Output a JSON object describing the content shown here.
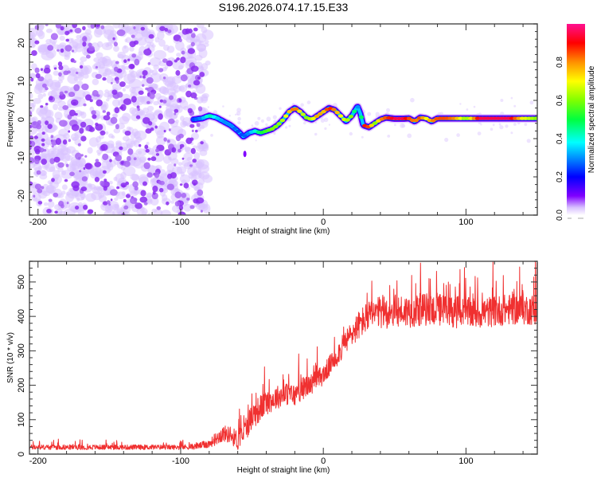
{
  "title": "S196.2026.074.17.15.E33",
  "chart_data": [
    {
      "type": "heatmap",
      "panel": "top",
      "xlabel": "Height of straight line (km)",
      "ylabel": "Frequency (Hz)",
      "xlim": [
        -206,
        150
      ],
      "ylim": [
        -25,
        25
      ],
      "xticks": [
        -200,
        -100,
        0,
        100
      ],
      "xtick_labels": [
        "-200",
        "-100",
        "0",
        "100"
      ],
      "yticks": [
        -20,
        -10,
        0,
        10,
        20
      ],
      "ytick_labels": [
        "-20",
        "-10",
        "0",
        "10",
        "20"
      ],
      "noise_region_x": [
        -206,
        -85
      ],
      "ridge": {
        "x": [
          -91,
          -85,
          -80,
          -75,
          -70,
          -65,
          -60,
          -56,
          -52,
          -48,
          -44,
          -40,
          -36,
          -32,
          -28,
          -24,
          -20,
          -16,
          -12,
          -8,
          -4,
          0,
          4,
          8,
          12,
          16,
          20,
          24,
          26,
          28,
          32,
          36,
          40,
          44,
          50,
          56,
          60,
          64,
          68,
          72,
          76,
          80,
          86,
          92,
          100,
          110,
          120,
          130,
          140,
          150
        ],
        "y": [
          0,
          0.3,
          1,
          0.5,
          -0.5,
          -1.5,
          -3,
          -4.5,
          -3.5,
          -3,
          -3.5,
          -3,
          -2.5,
          -1.5,
          0,
          2,
          3,
          2,
          0.5,
          0,
          1,
          2,
          3,
          2.5,
          1,
          -0.5,
          1,
          3.5,
          1.5,
          -1.5,
          -2,
          -1,
          0,
          0.5,
          0.2,
          0.2,
          0.3,
          -0.5,
          0.5,
          0.3,
          -0.5,
          0.3,
          0.3,
          0.3,
          0.3,
          0.3,
          0.3,
          0.3,
          0.3,
          0.3
        ],
        "amplitude": [
          0.25,
          0.3,
          0.45,
          0.35,
          0.3,
          0.3,
          0.25,
          0.25,
          0.3,
          0.4,
          0.5,
          0.55,
          0.6,
          0.6,
          0.65,
          0.75,
          0.85,
          0.7,
          0.6,
          0.65,
          0.8,
          0.75,
          0.9,
          0.8,
          0.7,
          0.65,
          0.6,
          0.3,
          0.3,
          0.9,
          0.85,
          0.6,
          0.8,
          0.85,
          0.95,
          0.95,
          0.85,
          0.8,
          0.85,
          0.7,
          0.8,
          0.85,
          0.85,
          0.8,
          0.6,
          0.95,
          0.95,
          0.95,
          0.7,
          0.6
        ]
      },
      "colorbar": {
        "label": "Normalized spectral amplitude",
        "range": [
          0,
          1
        ],
        "ticks": [
          0.0,
          0.2,
          0.4,
          0.6,
          0.8
        ],
        "tick_labels": [
          "0.0",
          "0.2",
          "0.4",
          "0.6",
          "0.8"
        ]
      }
    },
    {
      "type": "line",
      "panel": "bottom",
      "xlabel": "Height of straight line (km)",
      "ylabel": "SNR (10 * v/v)",
      "xlim": [
        -206,
        150
      ],
      "ylim": [
        0,
        560
      ],
      "xticks": [
        -200,
        -100,
        0,
        100
      ],
      "xtick_labels": [
        "-200",
        "-100",
        "0",
        "100"
      ],
      "yticks": [
        0,
        100,
        200,
        300,
        400,
        500
      ],
      "ytick_labels": [
        "0",
        "100",
        "200",
        "300",
        "400",
        "500"
      ],
      "series": [
        {
          "name": "SNR",
          "color": "#f03030",
          "x": [
            -206,
            -180,
            -150,
            -120,
            -100,
            -90,
            -80,
            -75,
            -70,
            -65,
            -60,
            -55,
            -50,
            -45,
            -40,
            -35,
            -30,
            -25,
            -20,
            -15,
            -10,
            -5,
            0,
            5,
            10,
            15,
            20,
            25,
            30,
            35,
            40,
            50,
            60,
            70,
            80,
            90,
            100,
            110,
            120,
            130,
            140,
            150
          ],
          "mean": [
            20,
            20,
            20,
            20,
            20,
            22,
            30,
            45,
            60,
            55,
            40,
            70,
            110,
            130,
            150,
            160,
            170,
            175,
            170,
            190,
            200,
            215,
            230,
            260,
            290,
            320,
            350,
            375,
            395,
            405,
            410,
            415,
            415,
            420,
            420,
            415,
            410,
            410,
            415,
            420,
            420,
            420
          ],
          "noise_amplitude": [
            12,
            12,
            12,
            12,
            12,
            14,
            20,
            30,
            40,
            40,
            50,
            60,
            65,
            65,
            60,
            60,
            55,
            55,
            55,
            55,
            50,
            50,
            50,
            50,
            55,
            60,
            65,
            70,
            75,
            75,
            80,
            80,
            80,
            80,
            80,
            80,
            75,
            75,
            75,
            75,
            75,
            75
          ]
        }
      ]
    }
  ]
}
